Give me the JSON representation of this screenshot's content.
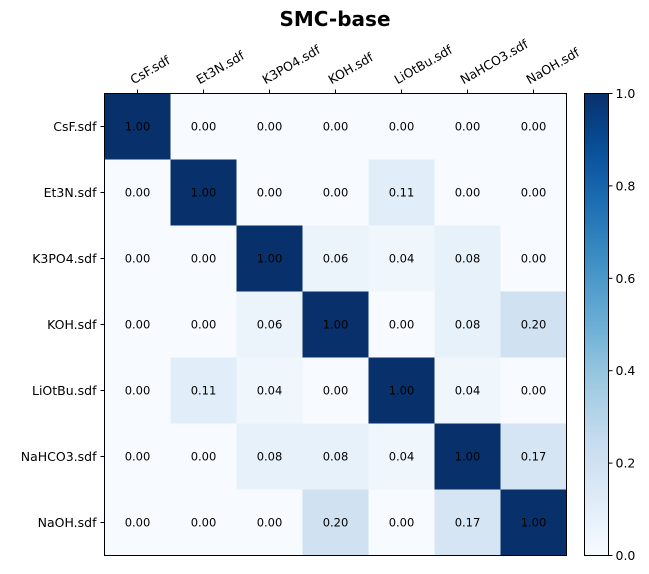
{
  "chart_data": {
    "type": "heatmap",
    "title": "SMC-base",
    "x_labels": [
      "CsF.sdf",
      "Et3N.sdf",
      "K3PO4.sdf",
      "KOH.sdf",
      "LiOtBu.sdf",
      "NaHCO3.sdf",
      "NaOH.sdf"
    ],
    "y_labels": [
      "CsF.sdf",
      "Et3N.sdf",
      "K3PO4.sdf",
      "KOH.sdf",
      "LiOtBu.sdf",
      "NaHCO3.sdf",
      "NaOH.sdf"
    ],
    "values": [
      [
        1.0,
        0.0,
        0.0,
        0.0,
        0.0,
        0.0,
        0.0
      ],
      [
        0.0,
        1.0,
        0.0,
        0.0,
        0.11,
        0.0,
        0.0
      ],
      [
        0.0,
        0.0,
        1.0,
        0.06,
        0.04,
        0.08,
        0.0
      ],
      [
        0.0,
        0.0,
        0.06,
        1.0,
        0.0,
        0.08,
        0.2
      ],
      [
        0.0,
        0.11,
        0.04,
        0.0,
        1.0,
        0.04,
        0.0
      ],
      [
        0.0,
        0.0,
        0.08,
        0.08,
        0.04,
        1.0,
        0.17
      ],
      [
        0.0,
        0.0,
        0.0,
        0.2,
        0.0,
        0.17,
        1.0
      ]
    ],
    "value_format": "2-decimal",
    "colormap": "Blues",
    "colorbar": {
      "range": [
        0.0,
        1.0
      ],
      "ticks": [
        "0.0",
        "0.2",
        "0.4",
        "0.6",
        "0.8",
        "1.0"
      ]
    },
    "x_tick_position": "top",
    "grid": false
  }
}
